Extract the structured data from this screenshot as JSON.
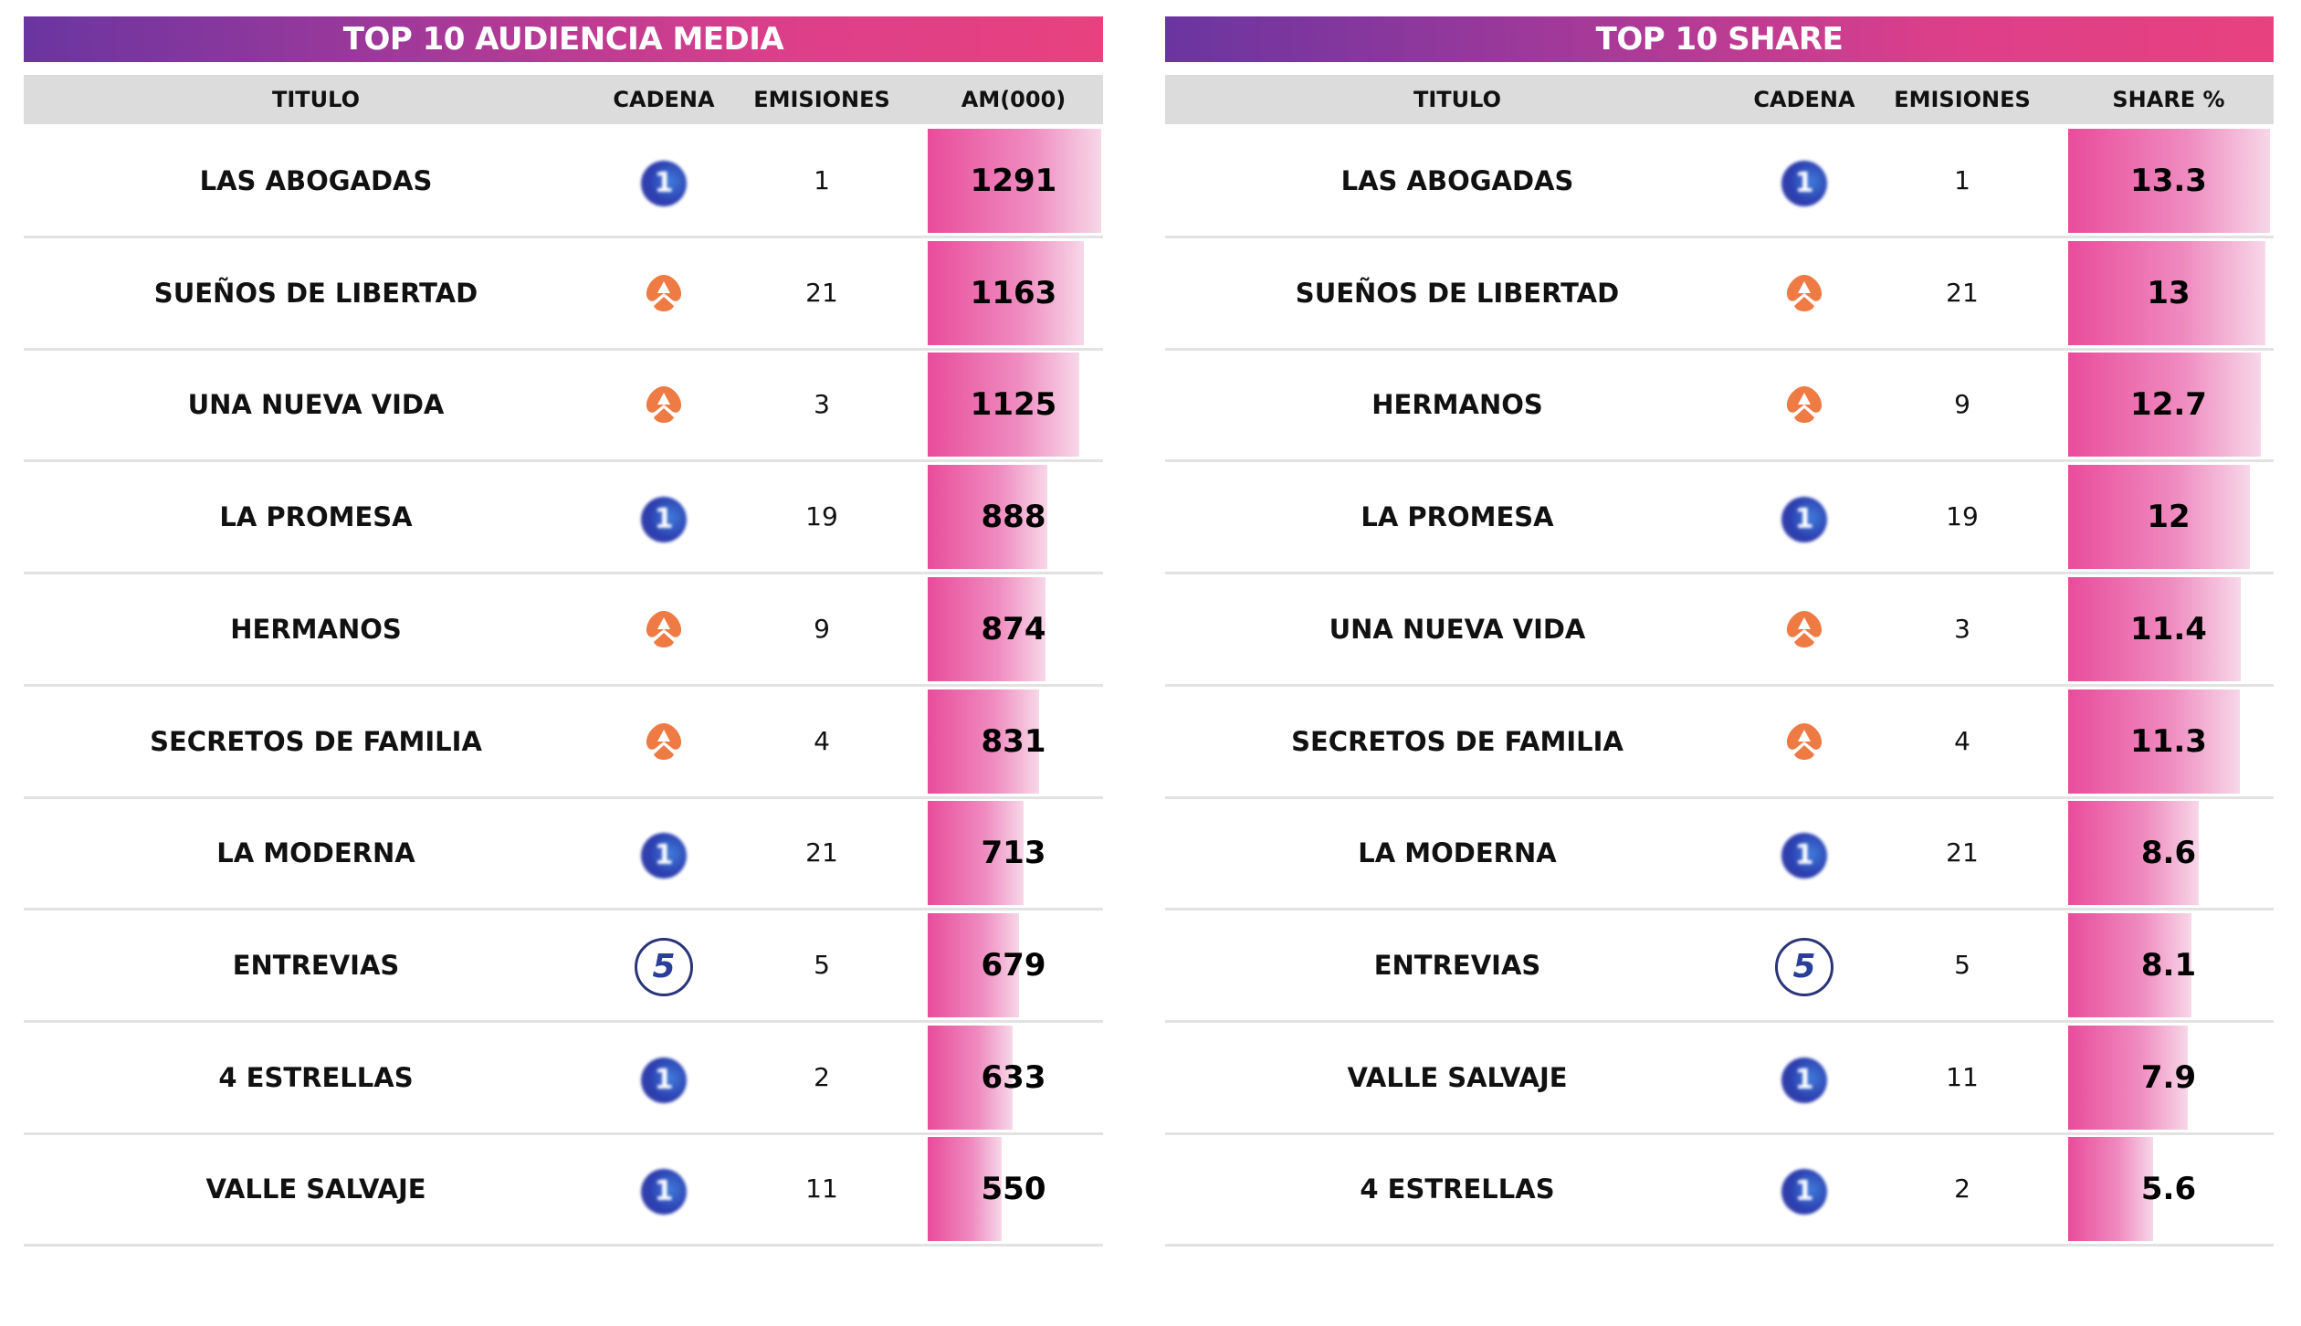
{
  "chart_data": [
    {
      "type": "table",
      "title": "TOP 10 AUDIENCIA MEDIA",
      "columns": [
        "TITULO",
        "CADENA",
        "EMISIONES",
        "AM(000)"
      ],
      "rows": [
        {
          "titulo": "LAS ABOGADAS",
          "cadena": "la1",
          "emisiones": "1",
          "value": "1291"
        },
        {
          "titulo": "SUEÑOS DE LIBERTAD",
          "cadena": "antena3",
          "emisiones": "21",
          "value": "1163"
        },
        {
          "titulo": "UNA NUEVA VIDA",
          "cadena": "antena3",
          "emisiones": "3",
          "value": "1125"
        },
        {
          "titulo": "LA PROMESA",
          "cadena": "la1",
          "emisiones": "19",
          "value": "888"
        },
        {
          "titulo": "HERMANOS",
          "cadena": "antena3",
          "emisiones": "9",
          "value": "874"
        },
        {
          "titulo": "SECRETOS DE FAMILIA",
          "cadena": "antena3",
          "emisiones": "4",
          "value": "831"
        },
        {
          "titulo": "LA MODERNA",
          "cadena": "la1",
          "emisiones": "21",
          "value": "713"
        },
        {
          "titulo": "ENTREVIAS",
          "cadena": "telecinco",
          "emisiones": "5",
          "value": "679"
        },
        {
          "titulo": "4 ESTRELLAS",
          "cadena": "la1",
          "emisiones": "2",
          "value": "633"
        },
        {
          "titulo": "VALLE SALVAJE",
          "cadena": "la1",
          "emisiones": "11",
          "value": "550"
        }
      ]
    },
    {
      "type": "table",
      "title": "TOP 10 SHARE",
      "columns": [
        "TITULO",
        "CADENA",
        "EMISIONES",
        "SHARE %"
      ],
      "rows": [
        {
          "titulo": "LAS ABOGADAS",
          "cadena": "la1",
          "emisiones": "1",
          "value": "13.3"
        },
        {
          "titulo": "SUEÑOS DE LIBERTAD",
          "cadena": "antena3",
          "emisiones": "21",
          "value": "13"
        },
        {
          "titulo": "HERMANOS",
          "cadena": "antena3",
          "emisiones": "9",
          "value": "12.7"
        },
        {
          "titulo": "LA PROMESA",
          "cadena": "la1",
          "emisiones": "19",
          "value": "12"
        },
        {
          "titulo": "UNA NUEVA VIDA",
          "cadena": "antena3",
          "emisiones": "3",
          "value": "11.4"
        },
        {
          "titulo": "SECRETOS DE FAMILIA",
          "cadena": "antena3",
          "emisiones": "4",
          "value": "11.3"
        },
        {
          "titulo": "LA MODERNA",
          "cadena": "la1",
          "emisiones": "21",
          "value": "8.6"
        },
        {
          "titulo": "ENTREVIAS",
          "cadena": "telecinco",
          "emisiones": "5",
          "value": "8.1"
        },
        {
          "titulo": "VALLE SALVAJE",
          "cadena": "la1",
          "emisiones": "11",
          "value": "7.9"
        },
        {
          "titulo": "4 ESTRELLAS",
          "cadena": "la1",
          "emisiones": "2",
          "value": "5.6"
        }
      ]
    }
  ],
  "logos": {
    "la1": "1",
    "telecinco": "5"
  },
  "colors": {
    "bar_start": "#e84c9b",
    "bar_end": "#f7d7e8",
    "title_start": "#6a35a0",
    "title_end": "#e8417f",
    "header_bg": "#dcdcdc"
  }
}
